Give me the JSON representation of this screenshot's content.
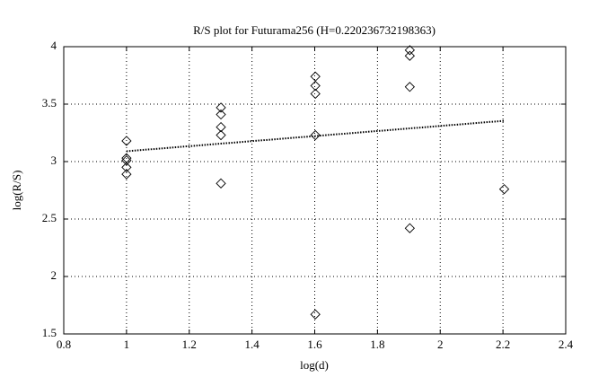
{
  "chart_data": {
    "type": "scatter",
    "title": "R/S plot for Futurama256 (H=0.220236732198363)",
    "x_label": "log(d)",
    "y_label": "log(R/S)",
    "xlim": [
      0.8,
      2.4
    ],
    "xticks": [
      0.8,
      1,
      1.2,
      1.4,
      1.6,
      1.8,
      2,
      2.2,
      2.4
    ],
    "ylim": [
      1.5,
      4
    ],
    "yticks": [
      1.5,
      2,
      2.5,
      3,
      3.5,
      4
    ],
    "grid": true,
    "series": [
      {
        "type": "scatter",
        "marker": "diamond",
        "color": "#000000",
        "x": [
          1,
          1,
          1,
          1,
          1,
          1.301,
          1.301,
          1.301,
          1.301,
          1.301,
          1.602,
          1.602,
          1.602,
          1.602,
          1.602,
          1.903,
          1.903,
          1.903,
          1.903,
          2.204
        ],
        "values": [
          3.18,
          3.03,
          3.01,
          2.95,
          2.89,
          3.47,
          3.41,
          3.3,
          3.23,
          2.81,
          3.74,
          3.66,
          3.59,
          3.23,
          1.67,
          3.97,
          3.92,
          3.65,
          2.42,
          2.76
        ]
      },
      {
        "type": "line",
        "style": "dotted",
        "color": "#000000",
        "x": [
          1,
          2.204
        ],
        "values": [
          3.09,
          3.355
        ]
      }
    ]
  }
}
